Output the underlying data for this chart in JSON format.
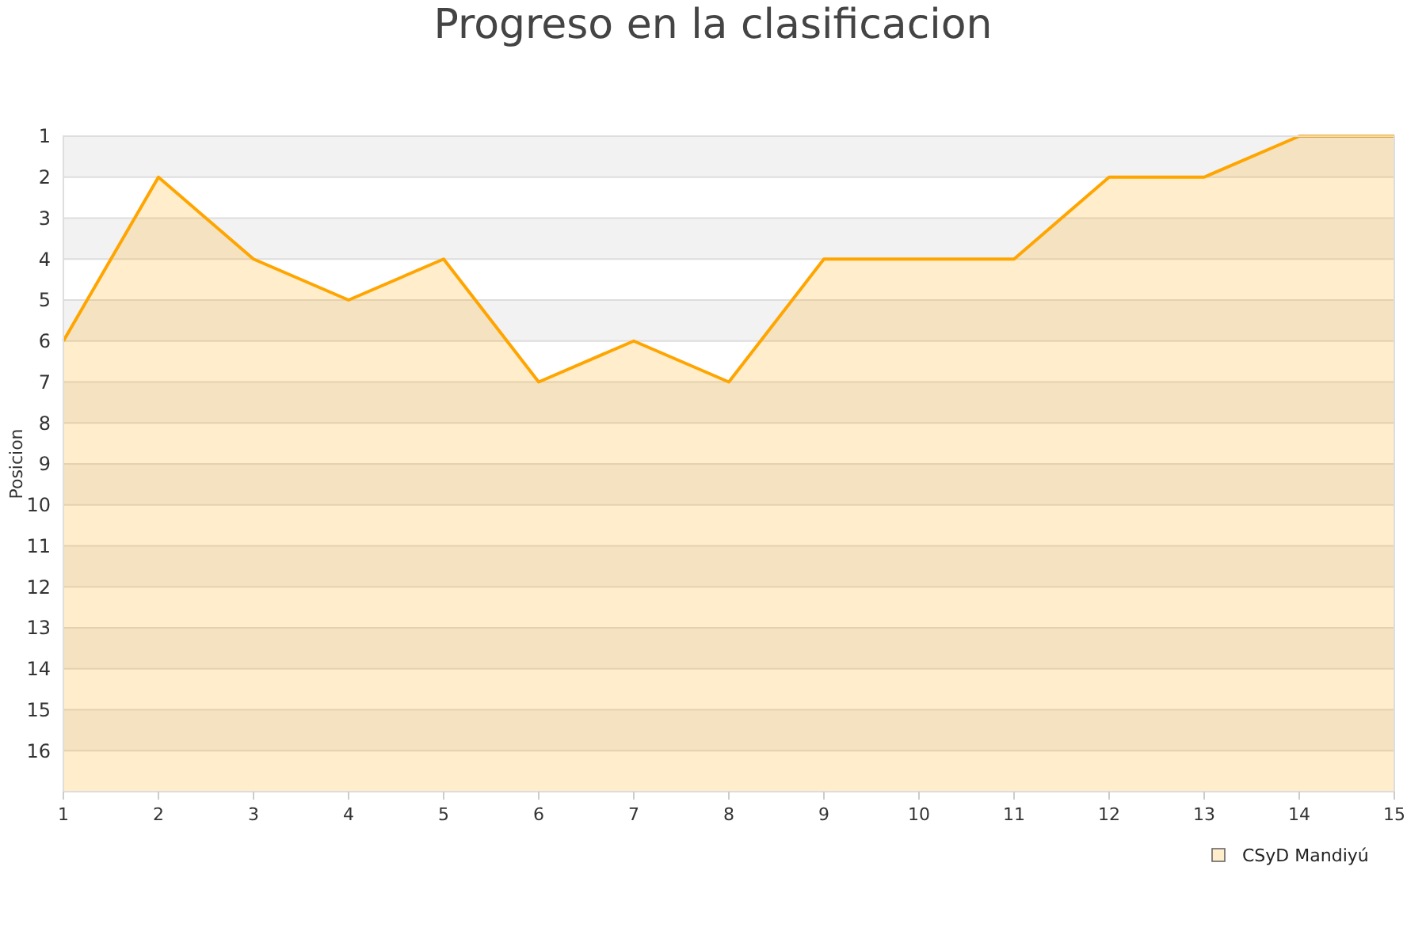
{
  "chart_data": {
    "type": "line",
    "title": "Progreso en la clasificacion",
    "ylabel": "Posicion",
    "x": [
      1,
      2,
      3,
      4,
      5,
      6,
      7,
      8,
      9,
      10,
      11,
      12,
      13,
      14,
      15
    ],
    "series": [
      {
        "name": "CSyD Mandiyú",
        "color": "#ffa500",
        "values": [
          6,
          2,
          4,
          5,
          4,
          7,
          6,
          7,
          4,
          4,
          4,
          2,
          2,
          1,
          1
        ],
        "lower": [
          17,
          17,
          17,
          17,
          17,
          17,
          17,
          17,
          17,
          17,
          17,
          17,
          17,
          17,
          17
        ],
        "upper": [
          6,
          2,
          4,
          5,
          4,
          7,
          6,
          7,
          4,
          4,
          4,
          2,
          2,
          1,
          1
        ]
      }
    ],
    "xlim": [
      1,
      15
    ],
    "xticks": [
      1,
      2,
      3,
      4,
      5,
      6,
      7,
      8,
      9,
      10,
      11,
      12,
      13,
      14,
      15
    ],
    "ylim": [
      17,
      1
    ],
    "yticks": [
      1,
      2,
      3,
      4,
      5,
      6,
      7,
      8,
      9,
      10,
      11,
      12,
      13,
      14,
      15,
      16
    ],
    "grid": true,
    "legend": "bottom right"
  }
}
